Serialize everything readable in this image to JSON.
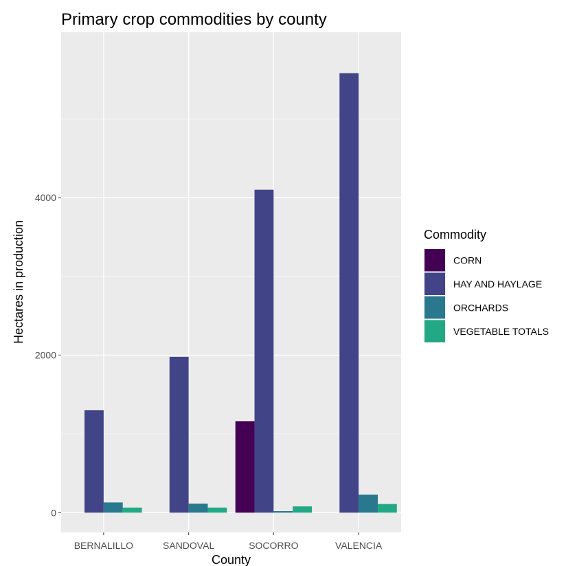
{
  "chart_data": {
    "type": "bar",
    "title": "Primary crop commodities by county",
    "xlabel": "County",
    "ylabel": "Hectares in production",
    "categories": [
      "BERNALILLO",
      "SANDOVAL",
      "SOCORRO",
      "VALENCIA"
    ],
    "series": [
      {
        "name": "CORN",
        "color": "#440154",
        "values": [
          null,
          null,
          1160,
          null
        ]
      },
      {
        "name": "HAY AND HAYLAGE",
        "color": "#414487",
        "values": [
          1300,
          1980,
          4100,
          5580
        ]
      },
      {
        "name": "ORCHARDS",
        "color": "#2A788E",
        "values": [
          130,
          115,
          20,
          230
        ]
      },
      {
        "name": "VEGETABLE TOTALS",
        "color": "#22A884",
        "values": [
          65,
          65,
          80,
          110
        ]
      }
    ],
    "ylim": [
      -250,
      6100
    ],
    "yticks": [
      0,
      2000,
      4000
    ],
    "ytick_labels": [
      "0",
      "2000",
      "4000"
    ],
    "grid": true,
    "panel_background": "#EBEBEB",
    "legend": {
      "title": "Commodity",
      "position": "right"
    }
  }
}
